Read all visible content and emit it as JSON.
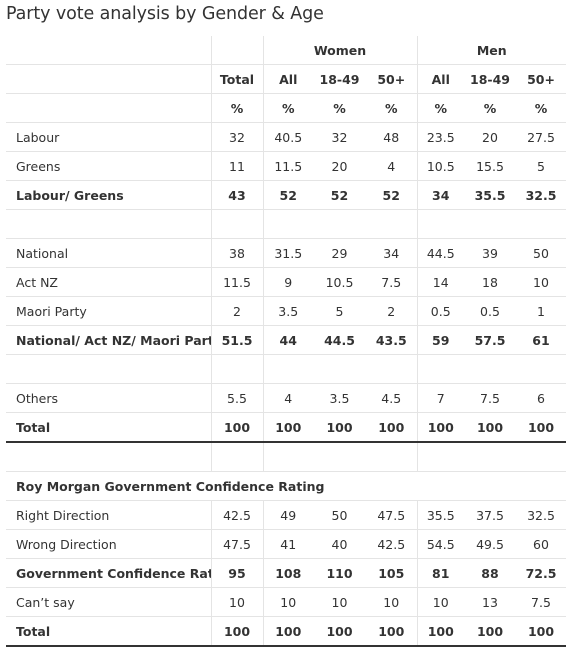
{
  "title": "Party vote analysis by Gender & Age",
  "header": {
    "groups": {
      "women": "Women",
      "men": "Men"
    },
    "columns": [
      "Total",
      "All",
      "18-49",
      "50+",
      "All",
      "18-49",
      "50+"
    ],
    "units": [
      "%",
      "%",
      "%",
      "%",
      "%",
      "%",
      "%"
    ]
  },
  "rows": {
    "labour": {
      "label": "Labour",
      "values": [
        "32",
        "40.5",
        "32",
        "48",
        "23.5",
        "20",
        "27.5"
      ]
    },
    "greens": {
      "label": "Greens",
      "values": [
        "11",
        "11.5",
        "20",
        "4",
        "10.5",
        "15.5",
        "5"
      ]
    },
    "labour_greens": {
      "label": "Labour/ Greens",
      "values": [
        "43",
        "52",
        "52",
        "52",
        "34",
        "35.5",
        "32.5"
      ]
    },
    "national": {
      "label": "National",
      "values": [
        "38",
        "31.5",
        "29",
        "34",
        "44.5",
        "39",
        "50"
      ]
    },
    "act": {
      "label": "Act NZ",
      "values": [
        "11.5",
        "9",
        "10.5",
        "7.5",
        "14",
        "18",
        "10"
      ]
    },
    "maori": {
      "label": "Maori Party",
      "values": [
        "2",
        "3.5",
        "5",
        "2",
        "0.5",
        "0.5",
        "1"
      ]
    },
    "national_act_maori": {
      "label": "National/ Act NZ/ Maori Party",
      "values": [
        "51.5",
        "44",
        "44.5",
        "43.5",
        "59",
        "57.5",
        "61"
      ]
    },
    "others": {
      "label": "Others",
      "values": [
        "5.5",
        "4",
        "3.5",
        "4.5",
        "7",
        "7.5",
        "6"
      ]
    },
    "total1": {
      "label": "Total",
      "values": [
        "100",
        "100",
        "100",
        "100",
        "100",
        "100",
        "100"
      ]
    },
    "confidence_heading": {
      "label": "Roy Morgan Government Confidence Rating"
    },
    "right_direction": {
      "label": "Right Direction",
      "values": [
        "42.5",
        "49",
        "50",
        "47.5",
        "35.5",
        "37.5",
        "32.5"
      ]
    },
    "wrong_direction": {
      "label": "Wrong Direction",
      "values": [
        "47.5",
        "41",
        "40",
        "42.5",
        "54.5",
        "49.5",
        "60"
      ]
    },
    "gcr": {
      "label": "Government Confidence Rating",
      "values": [
        "95",
        "108",
        "110",
        "105",
        "81",
        "88",
        "72.5"
      ]
    },
    "cant_say": {
      "label": "Can’t say",
      "values": [
        "10",
        "10",
        "10",
        "10",
        "10",
        "13",
        "7.5"
      ]
    },
    "total2": {
      "label": "Total",
      "values": [
        "100",
        "100",
        "100",
        "100",
        "100",
        "100",
        "100"
      ]
    }
  }
}
